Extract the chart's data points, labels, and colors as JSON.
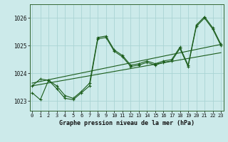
{
  "title": "Graphe pression niveau de la mer (hPa)",
  "bg_color": "#cceaea",
  "grid_color": "#aad4d4",
  "line_color": "#1a5c1a",
  "xlim": [
    -0.3,
    23.3
  ],
  "ylim": [
    1022.65,
    1026.5
  ],
  "yticks": [
    1023,
    1024,
    1025,
    1026
  ],
  "xtick_labels": [
    "0",
    "1",
    "2",
    "3",
    "4",
    "5",
    "6",
    "7",
    "8",
    "9",
    "10",
    "11",
    "12",
    "13",
    "14",
    "15",
    "16",
    "17",
    "18",
    "19",
    "20",
    "21",
    "22",
    "23"
  ],
  "series1": [
    1023.55,
    1023.8,
    1023.75,
    1023.55,
    1023.2,
    1023.1,
    1023.35,
    1023.65,
    1025.3,
    1025.35,
    1024.85,
    1024.65,
    1024.3,
    1024.35,
    1024.45,
    1024.35,
    1024.45,
    1024.5,
    1024.95,
    1024.3,
    1025.75,
    1026.05,
    1025.65,
    1025.05
  ],
  "series2": [
    1023.3,
    1023.05,
    1023.75,
    1023.45,
    1023.1,
    1023.05,
    1023.3,
    1023.55,
    1025.25,
    1025.3,
    1024.8,
    1024.6,
    1024.25,
    1024.3,
    1024.4,
    1024.3,
    1024.4,
    1024.45,
    1024.9,
    1024.25,
    1025.7,
    1026.0,
    1025.6,
    1025.0
  ],
  "trend1_x": [
    0,
    23
  ],
  "trend1_y": [
    1023.65,
    1025.05
  ],
  "trend2_x": [
    0,
    23
  ],
  "trend2_y": [
    1023.55,
    1024.75
  ],
  "figsize": [
    3.2,
    2.0
  ],
  "dpi": 100
}
